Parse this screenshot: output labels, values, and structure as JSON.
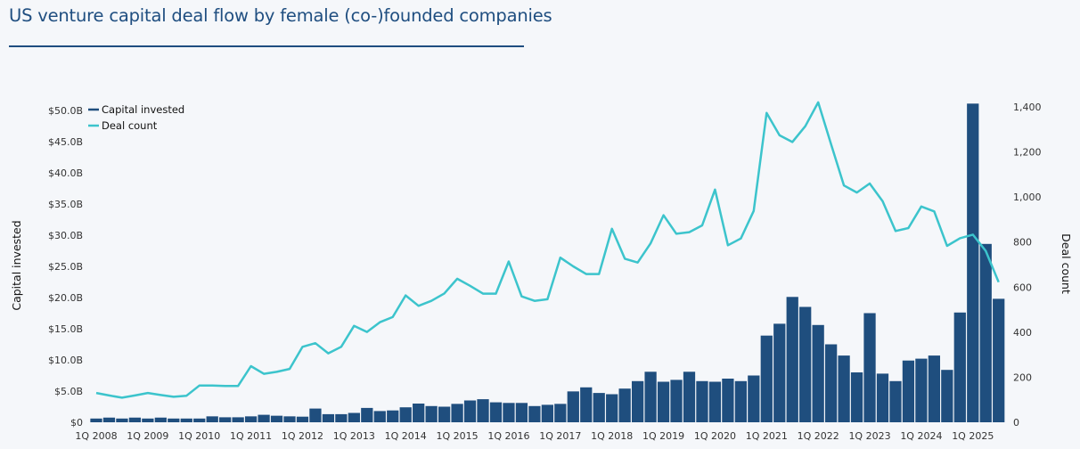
{
  "title": "US venture capital deal flow by female (co-)founded companies",
  "colors": {
    "capital": "#1f4e7e",
    "deals": "#3cc4cc",
    "title": "#1f4e80"
  },
  "chart_data": {
    "type": "bar+line",
    "title": "US venture capital deal flow by female (co-)founded companies",
    "legend": {
      "placement": "top-left",
      "entries": [
        "Capital invested",
        "Deal count"
      ]
    },
    "y_left": {
      "label": "Capital invested",
      "range": [
        0,
        50
      ],
      "unit": "$B",
      "ticks": [
        "$0",
        "$5.0B",
        "$10.0B",
        "$15.0B",
        "$20.0B",
        "$25.0B",
        "$30.0B",
        "$35.0B",
        "$40.0B",
        "$45.0B",
        "$50.0B"
      ]
    },
    "y_right": {
      "label": "Deal count",
      "range": [
        0,
        1400
      ],
      "ticks": [
        "0",
        "200",
        "400",
        "600",
        "800",
        "1,000",
        "1,200",
        "1,400"
      ]
    },
    "x_ticks": [
      "1Q 2008",
      "1Q 2009",
      "1Q 2010",
      "1Q 2011",
      "1Q 2012",
      "1Q 2013",
      "1Q 2014",
      "1Q 2015",
      "1Q 2016",
      "1Q 2017",
      "1Q 2018",
      "1Q 2019",
      "1Q 2020",
      "1Q 2021",
      "1Q 2022",
      "1Q 2023",
      "1Q 2024",
      "1Q 2025"
    ],
    "grid": false,
    "categories": [
      "1Q 2008",
      "2Q 2008",
      "3Q 2008",
      "4Q 2008",
      "1Q 2009",
      "2Q 2009",
      "3Q 2009",
      "4Q 2009",
      "1Q 2010",
      "2Q 2010",
      "3Q 2010",
      "4Q 2010",
      "1Q 2011",
      "2Q 2011",
      "3Q 2011",
      "4Q 2011",
      "1Q 2012",
      "2Q 2012",
      "3Q 2012",
      "4Q 2012",
      "1Q 2013",
      "2Q 2013",
      "3Q 2013",
      "4Q 2013",
      "1Q 2014",
      "2Q 2014",
      "3Q 2014",
      "4Q 2014",
      "1Q 2015",
      "2Q 2015",
      "3Q 2015",
      "4Q 2015",
      "1Q 2016",
      "2Q 2016",
      "3Q 2016",
      "4Q 2016",
      "1Q 2017",
      "2Q 2017",
      "3Q 2017",
      "4Q 2017",
      "1Q 2018",
      "2Q 2018",
      "3Q 2018",
      "4Q 2018",
      "1Q 2019",
      "2Q 2019",
      "3Q 2019",
      "4Q 2019",
      "1Q 2020",
      "2Q 2020",
      "3Q 2020",
      "4Q 2020",
      "1Q 2021",
      "2Q 2021",
      "3Q 2021",
      "4Q 2021",
      "1Q 2022",
      "2Q 2022",
      "3Q 2022",
      "4Q 2022",
      "1Q 2023",
      "2Q 2023",
      "3Q 2023",
      "4Q 2023",
      "1Q 2024",
      "2Q 2024",
      "3Q 2024",
      "4Q 2024",
      "1Q 2025",
      "2Q 2025",
      "3Q 2025"
    ],
    "series": [
      {
        "name": "Capital invested",
        "type": "bar",
        "axis": "left",
        "values": [
          0.6,
          0.75,
          0.6,
          0.75,
          0.6,
          0.75,
          0.6,
          0.6,
          0.6,
          0.95,
          0.8,
          0.8,
          0.95,
          1.2,
          1.05,
          0.95,
          0.9,
          2.2,
          1.3,
          1.3,
          1.5,
          2.3,
          1.8,
          1.9,
          2.4,
          3.0,
          2.6,
          2.5,
          2.95,
          3.5,
          3.7,
          3.2,
          3.1,
          3.1,
          2.6,
          2.8,
          2.95,
          4.95,
          5.6,
          4.7,
          4.5,
          5.4,
          6.6,
          8.1,
          6.5,
          6.8,
          8.1,
          6.6,
          6.5,
          7.0,
          6.6,
          7.5,
          13.9,
          15.8,
          20.1,
          18.5,
          15.6,
          12.5,
          10.7,
          8.0,
          17.5,
          7.8,
          6.6,
          9.9,
          10.2,
          10.7,
          8.4,
          17.6,
          51.1,
          28.6,
          19.8
        ]
      },
      {
        "name": "Deal count",
        "type": "line",
        "axis": "right",
        "values": [
          130,
          119,
          109,
          119,
          130,
          121,
          113,
          118,
          163,
          163,
          161,
          161,
          249,
          215,
          224,
          237,
          335,
          351,
          306,
          335,
          428,
          401,
          444,
          467,
          563,
          517,
          539,
          572,
          637,
          606,
          571,
          571,
          714,
          559,
          539,
          546,
          731,
          692,
          658,
          658,
          859,
          726,
          709,
          794,
          919,
          837,
          844,
          874,
          1033,
          786,
          816,
          938,
          1373,
          1274,
          1244,
          1314,
          1420,
          1235,
          1051,
          1020,
          1060,
          981,
          849,
          862,
          958,
          936,
          783,
          817,
          833,
          761,
          622
        ]
      }
    ]
  }
}
